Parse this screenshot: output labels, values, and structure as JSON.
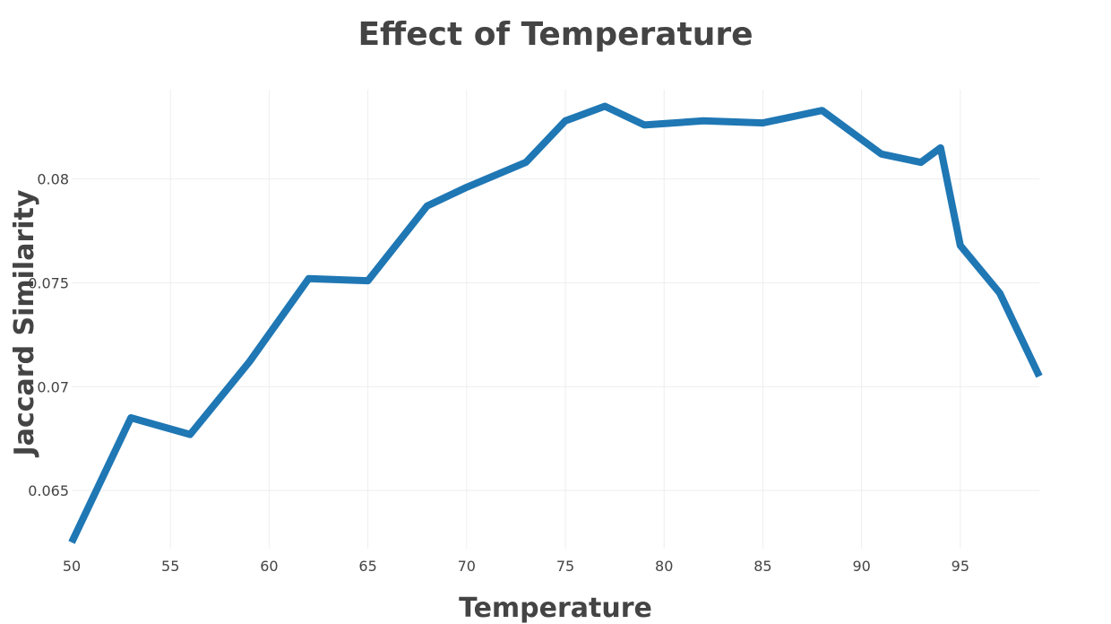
{
  "chart_data": {
    "type": "line",
    "title": "Effect of Temperature",
    "xlabel": "Temperature",
    "ylabel": "Jaccard Similarity",
    "xlim": [
      50,
      99
    ],
    "ylim": [
      0.0622,
      0.0843
    ],
    "xticks": [
      50,
      55,
      60,
      65,
      70,
      75,
      80,
      85,
      90,
      95
    ],
    "yticks": [
      0.065,
      0.07,
      0.075,
      0.08
    ],
    "x_tick_labels": [
      "50",
      "55",
      "60",
      "65",
      "70",
      "75",
      "80",
      "85",
      "90",
      "95"
    ],
    "y_tick_labels": [
      "0.065",
      "0.07",
      "0.075",
      "0.08"
    ],
    "grid": true,
    "line_color": "#1f77b4",
    "series": [
      {
        "x": [
          50,
          53,
          56,
          59,
          62,
          65,
          68,
          70,
          73,
          75,
          77,
          79,
          82,
          85,
          88,
          91,
          93,
          94,
          95,
          97,
          99
        ],
        "y": [
          0.0625,
          0.0685,
          0.0677,
          0.0712,
          0.0752,
          0.0751,
          0.0787,
          0.0796,
          0.0808,
          0.0828,
          0.0835,
          0.0826,
          0.0828,
          0.0827,
          0.0833,
          0.0812,
          0.0808,
          0.0815,
          0.0768,
          0.0745,
          0.0705
        ]
      }
    ]
  }
}
